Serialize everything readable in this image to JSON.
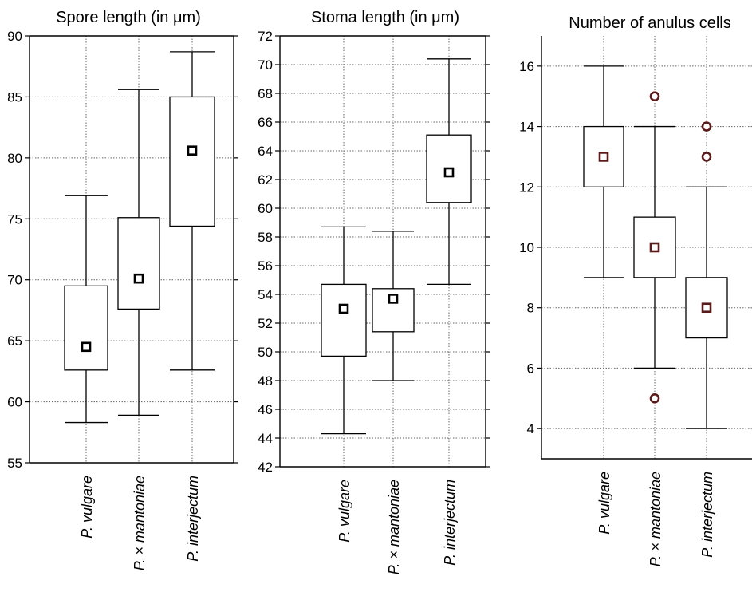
{
  "chart_data": [
    {
      "type": "box",
      "title": "Spore length (in μm)",
      "xlabel": "",
      "ylabel": "",
      "ylim": [
        55,
        90
      ],
      "yticks": [
        55,
        60,
        65,
        70,
        75,
        80,
        85,
        90
      ],
      "grid": true,
      "categories": [
        "P. vulgare",
        "P. × mantoniae",
        "P. interjectum"
      ],
      "series": [
        {
          "values": [
            {
              "whisker_low": 58.3,
              "q1": 62.6,
              "mean": 64.5,
              "q3": 69.5,
              "whisker_high": 76.9,
              "outliers": []
            },
            {
              "whisker_low": 58.9,
              "q1": 67.6,
              "mean": 70.1,
              "q3": 75.1,
              "whisker_high": 85.6,
              "outliers": []
            },
            {
              "whisker_low": 62.6,
              "q1": 74.4,
              "mean": 80.6,
              "q3": 85.0,
              "whisker_high": 88.7,
              "outliers": []
            }
          ]
        }
      ]
    },
    {
      "type": "box",
      "title": "Stoma length (in μm)",
      "xlabel": "",
      "ylabel": "",
      "ylim": [
        42,
        72
      ],
      "yticks": [
        42,
        44,
        46,
        48,
        50,
        52,
        54,
        56,
        58,
        60,
        62,
        64,
        66,
        68,
        70,
        72
      ],
      "grid": true,
      "categories": [
        "P. vulgare",
        "P. × mantoniae",
        "P. interjectum"
      ],
      "series": [
        {
          "values": [
            {
              "whisker_low": 44.3,
              "q1": 49.7,
              "mean": 53.0,
              "q3": 54.7,
              "whisker_high": 58.7,
              "outliers": []
            },
            {
              "whisker_low": 48.0,
              "q1": 51.4,
              "mean": 53.7,
              "q3": 54.4,
              "whisker_high": 58.4,
              "outliers": []
            },
            {
              "whisker_low": 54.7,
              "q1": 60.4,
              "mean": 62.5,
              "q3": 65.1,
              "whisker_high": 70.4,
              "outliers": []
            }
          ]
        }
      ]
    },
    {
      "type": "box",
      "title": "Number of anulus cells",
      "xlabel": "",
      "ylabel": "",
      "ylim": [
        3,
        17
      ],
      "yticks": [
        4,
        6,
        8,
        10,
        12,
        14,
        16
      ],
      "grid": true,
      "categories": [
        "P. vulgare",
        "P. × mantoniae",
        "P. interjectum"
      ],
      "series": [
        {
          "values": [
            {
              "whisker_low": 9,
              "q1": 12,
              "mean": 13,
              "q3": 14,
              "whisker_high": 16,
              "outliers": []
            },
            {
              "whisker_low": 6,
              "q1": 9,
              "mean": 10,
              "q3": 11,
              "whisker_high": 14,
              "outliers": [
                15,
                5
              ]
            },
            {
              "whisker_low": 4,
              "q1": 7,
              "mean": 8,
              "q3": 9,
              "whisker_high": 12,
              "outliers": [
                14,
                13
              ]
            }
          ]
        }
      ]
    }
  ],
  "colors": {
    "line": "#000000",
    "grid": "#666666",
    "marker_panels_1_2": "#000000",
    "marker_panel_3": "#5a1a1a"
  }
}
